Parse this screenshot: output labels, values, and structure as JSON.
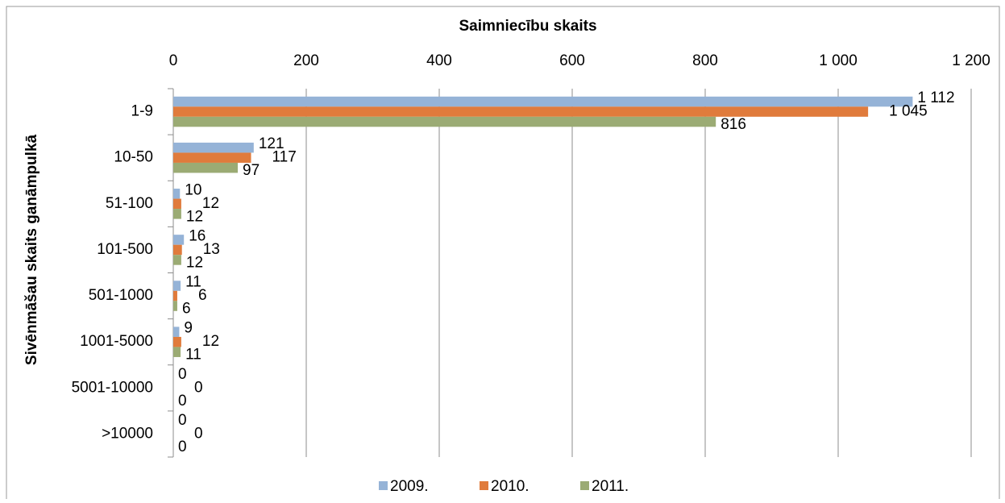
{
  "chart_data": {
    "type": "hbar",
    "title": "Saimniecību skaits",
    "y_label": "Sivēnmāšau skaits ganāmpulkā",
    "categories": [
      "1-9",
      "10-50",
      "51-100",
      "101-500",
      "501-1000",
      "1001-5000",
      "5001-10000",
      ">10000"
    ],
    "series": [
      {
        "name": "2009.",
        "color": "#95b3d7",
        "values": [
          1112,
          121,
          10,
          16,
          11,
          9,
          0,
          0
        ],
        "value_labels": [
          "1 112",
          "121",
          "10",
          "16",
          "11",
          "9",
          "0",
          "0"
        ]
      },
      {
        "name": "2010.",
        "color": "#e07b3c",
        "values": [
          1045,
          117,
          12,
          13,
          6,
          12,
          0,
          0
        ],
        "value_labels": [
          "1 045",
          "117",
          "12",
          "13",
          "6",
          "12",
          "0",
          "0"
        ]
      },
      {
        "name": "2011.",
        "color": "#9bab74",
        "values": [
          816,
          97,
          12,
          12,
          6,
          11,
          0,
          0
        ],
        "value_labels": [
          "816",
          "97",
          "12",
          "12",
          "6",
          "11",
          "0",
          "0"
        ]
      }
    ],
    "xlim": [
      0,
      1200
    ],
    "xticks": [
      0,
      200,
      400,
      600,
      800,
      {
        "value": 1000,
        "label": "1 000"
      },
      {
        "value": 1200,
        "label": "1 200"
      }
    ],
    "grid": true,
    "legend": "bottom"
  }
}
